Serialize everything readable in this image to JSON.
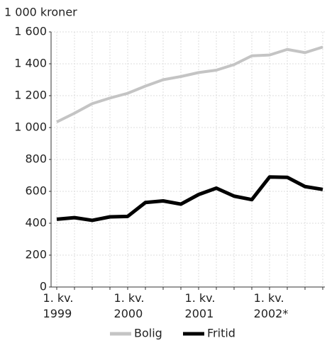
{
  "chart_data": {
    "type": "line",
    "y_axis_label": "1 000 kroner",
    "categories": [
      "1. kv.\n1999",
      null,
      null,
      null,
      "1. kv.\n2000",
      null,
      null,
      null,
      "1. kv.\n2001",
      null,
      null,
      null,
      "1. kv.\n2002*",
      null,
      null,
      null
    ],
    "series": [
      {
        "name": "Bolig",
        "color": "#c4c4c4",
        "values": [
          1035,
          1090,
          1150,
          1185,
          1215,
          1260,
          1300,
          1320,
          1345,
          1360,
          1395,
          1450,
          1455,
          1490,
          1470,
          1505
        ]
      },
      {
        "name": "Fritid",
        "color": "#000000",
        "values": [
          425,
          435,
          418,
          440,
          443,
          530,
          540,
          520,
          580,
          620,
          570,
          548,
          690,
          688,
          630,
          612
        ]
      }
    ],
    "ylim": [
      0,
      1600
    ],
    "yticks": [
      0,
      200,
      400,
      600,
      800,
      {
        "value": 1000,
        "label": "1 000"
      },
      {
        "value": 1200,
        "label": "1 200"
      },
      {
        "value": 1400,
        "label": "1 400"
      },
      {
        "value": 1600,
        "label": "1 600"
      }
    ],
    "grid": true,
    "legend": "bottom"
  }
}
